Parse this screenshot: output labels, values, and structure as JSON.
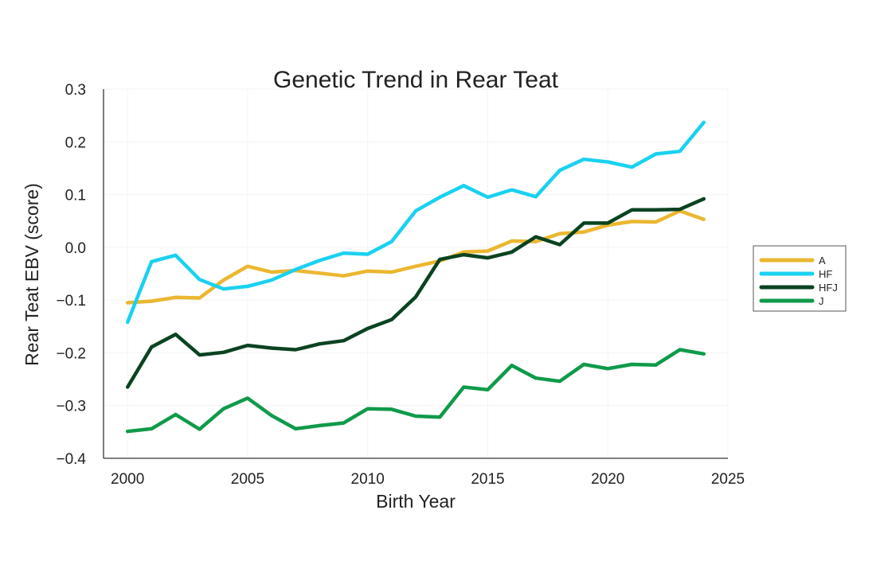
{
  "chart_data": {
    "type": "line",
    "title": "Genetic Trend in Rear Teat",
    "xlabel": "Birth Year",
    "ylabel": "Rear Teat EBV (score)",
    "xlim": [
      1999,
      2025
    ],
    "ylim": [
      -0.4,
      0.3
    ],
    "xticks": [
      2000,
      2005,
      2010,
      2015,
      2020,
      2025
    ],
    "xtick_labels": [
      "2000",
      "2005",
      "2010",
      "2015",
      "2020",
      "2025"
    ],
    "yticks": [
      0.3,
      0.2,
      0.1,
      0.0,
      -0.1,
      -0.2,
      -0.3,
      -0.4
    ],
    "ytick_labels": [
      "0.3",
      "0.2",
      "0.1",
      "0.0",
      "−0.1",
      "−0.2",
      "−0.3",
      "−0.4"
    ],
    "grid": true,
    "legend_position": "right",
    "x": [
      2000,
      2001,
      2002,
      2003,
      2004,
      2005,
      2006,
      2007,
      2008,
      2009,
      2010,
      2011,
      2012,
      2013,
      2014,
      2015,
      2016,
      2017,
      2018,
      2019,
      2020,
      2021,
      2022,
      2023,
      2024
    ],
    "series": [
      {
        "name": "A",
        "color": "#ebb730",
        "values": [
          -0.105,
          -0.102,
          -0.095,
          -0.096,
          -0.062,
          -0.036,
          -0.047,
          -0.044,
          -0.049,
          -0.054,
          -0.045,
          -0.047,
          -0.036,
          -0.026,
          -0.009,
          -0.007,
          0.012,
          0.011,
          0.026,
          0.029,
          0.042,
          0.049,
          0.048,
          0.069,
          0.053
        ]
      },
      {
        "name": "HF",
        "color": "#1ad1f1",
        "values": [
          -0.142,
          -0.027,
          -0.015,
          -0.061,
          -0.079,
          -0.074,
          -0.062,
          -0.042,
          -0.025,
          -0.011,
          -0.013,
          0.011,
          0.069,
          0.095,
          0.117,
          0.095,
          0.109,
          0.096,
          0.146,
          0.167,
          0.162,
          0.152,
          0.177,
          0.182,
          0.237
        ]
      },
      {
        "name": "HFJ",
        "color": "#0b4321",
        "values": [
          -0.265,
          -0.189,
          -0.165,
          -0.204,
          -0.199,
          -0.186,
          -0.191,
          -0.194,
          -0.183,
          -0.177,
          -0.154,
          -0.137,
          -0.094,
          -0.023,
          -0.014,
          -0.02,
          -0.009,
          0.02,
          0.005,
          0.046,
          0.046,
          0.071,
          0.071,
          0.072,
          0.092
        ]
      },
      {
        "name": "J",
        "color": "#0f9a4a",
        "values": [
          -0.349,
          -0.344,
          -0.317,
          -0.345,
          -0.306,
          -0.286,
          -0.319,
          -0.344,
          -0.338,
          -0.333,
          -0.306,
          -0.307,
          -0.32,
          -0.322,
          -0.265,
          -0.27,
          -0.224,
          -0.248,
          -0.254,
          -0.222,
          -0.23,
          -0.222,
          -0.223,
          -0.194,
          -0.202
        ]
      }
    ]
  }
}
